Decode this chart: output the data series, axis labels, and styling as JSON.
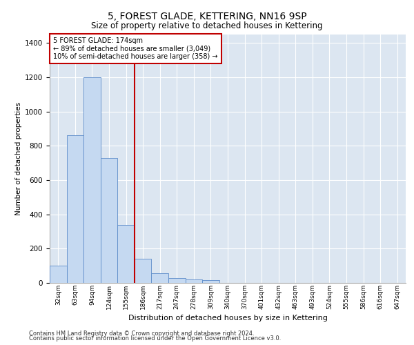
{
  "title": "5, FOREST GLADE, KETTERING, NN16 9SP",
  "subtitle": "Size of property relative to detached houses in Kettering",
  "xlabel": "Distribution of detached houses by size in Kettering",
  "ylabel": "Number of detached properties",
  "categories": [
    "32sqm",
    "63sqm",
    "94sqm",
    "124sqm",
    "155sqm",
    "186sqm",
    "217sqm",
    "247sqm",
    "278sqm",
    "309sqm",
    "340sqm",
    "370sqm",
    "401sqm",
    "432sqm",
    "463sqm",
    "493sqm",
    "524sqm",
    "555sqm",
    "586sqm",
    "616sqm",
    "647sqm"
  ],
  "values": [
    100,
    860,
    1200,
    730,
    340,
    140,
    55,
    28,
    20,
    15,
    0,
    0,
    0,
    0,
    0,
    0,
    0,
    0,
    0,
    0,
    0
  ],
  "bar_color": "#c5d9f1",
  "bar_edge_color": "#5b8bc9",
  "vline_x_index": 4.5,
  "vline_color": "#c00000",
  "annotation_line1": "5 FOREST GLADE: 174sqm",
  "annotation_line2": "← 89% of detached houses are smaller (3,049)",
  "annotation_line3": "10% of semi-detached houses are larger (358) →",
  "annotation_box_color": "#c00000",
  "ylim": [
    0,
    1450
  ],
  "yticks": [
    0,
    200,
    400,
    600,
    800,
    1000,
    1200,
    1400
  ],
  "background_color": "#dce6f1",
  "grid_color": "#ffffff",
  "footer_line1": "Contains HM Land Registry data © Crown copyright and database right 2024.",
  "footer_line2": "Contains public sector information licensed under the Open Government Licence v3.0."
}
